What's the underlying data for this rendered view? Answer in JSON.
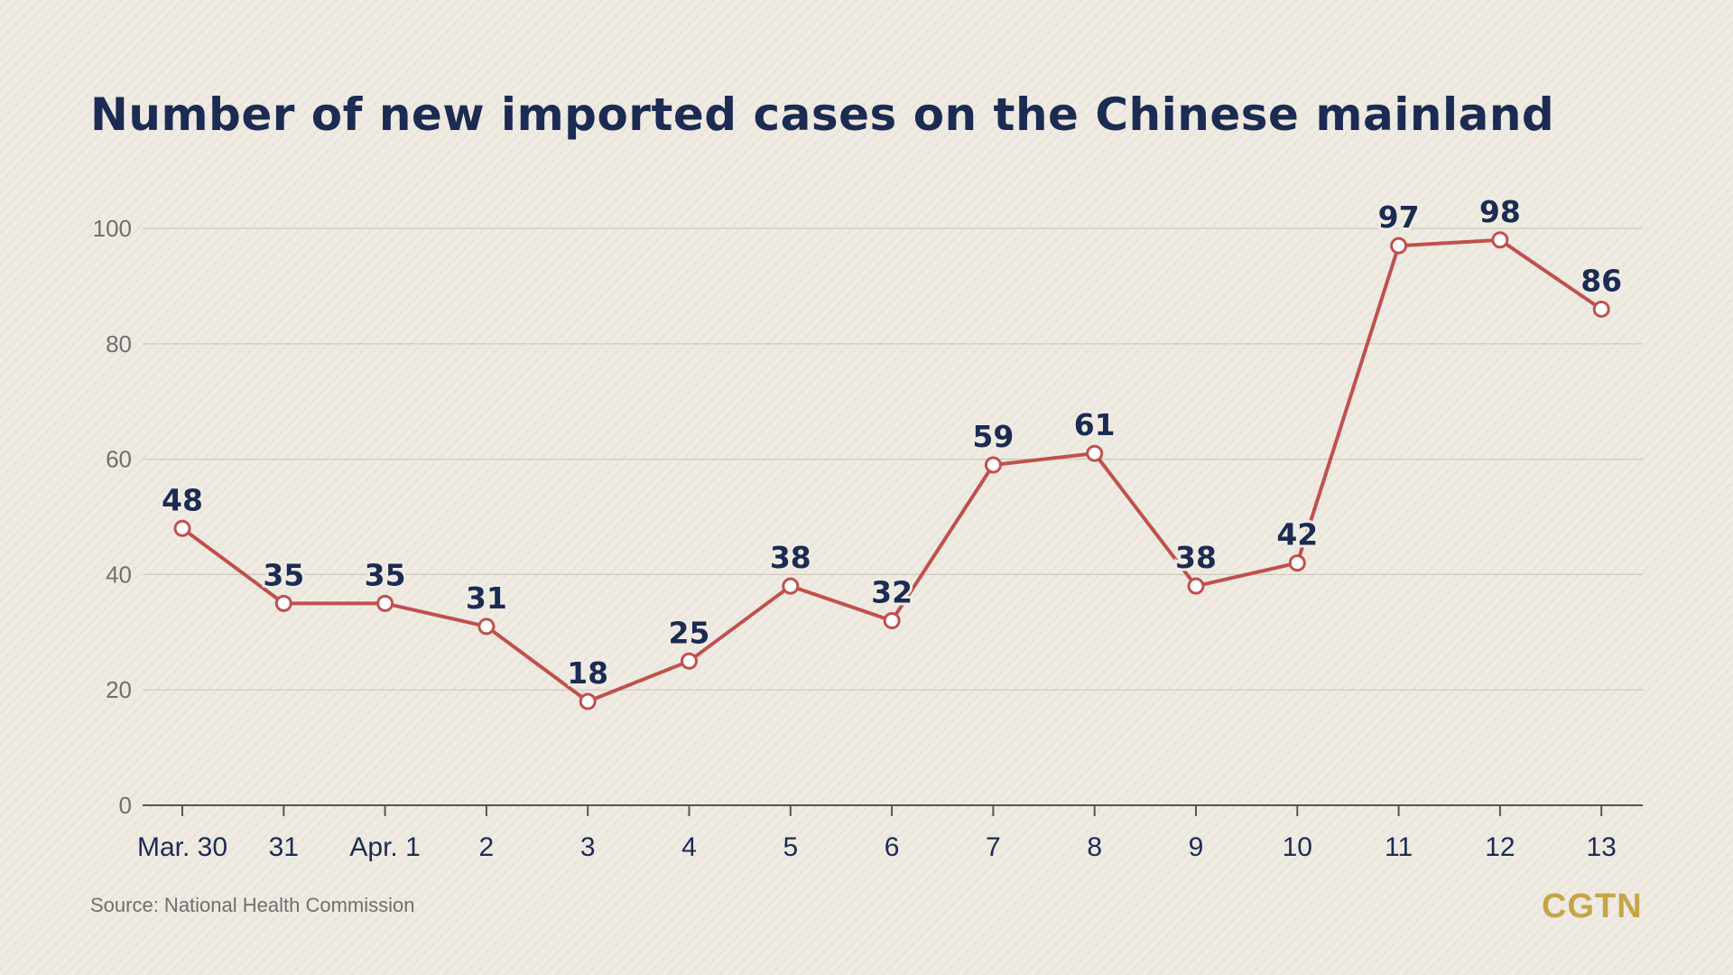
{
  "title": "Number of new imported cases on the Chinese mainland",
  "source": "Source: National Health Commission",
  "logo": "CGTN",
  "colors": {
    "line": "#c0504d",
    "label": "#1b2b52",
    "axis_text": "#6f6f6f",
    "grid": "#cfc9bd",
    "logo": "#c5a544"
  },
  "chart_data": {
    "type": "line",
    "title": "Number of new imported cases on the Chinese mainland",
    "categories": [
      "Mar. 30",
      "31",
      "Apr. 1",
      "2",
      "3",
      "4",
      "5",
      "6",
      "7",
      "8",
      "9",
      "10",
      "11",
      "12",
      "13"
    ],
    "values": [
      48,
      35,
      35,
      31,
      18,
      25,
      38,
      32,
      59,
      61,
      38,
      42,
      97,
      98,
      86
    ],
    "yticks": [
      0,
      20,
      40,
      60,
      80,
      100
    ],
    "ylim": [
      0,
      100
    ],
    "grid": true,
    "data_labels": true
  }
}
